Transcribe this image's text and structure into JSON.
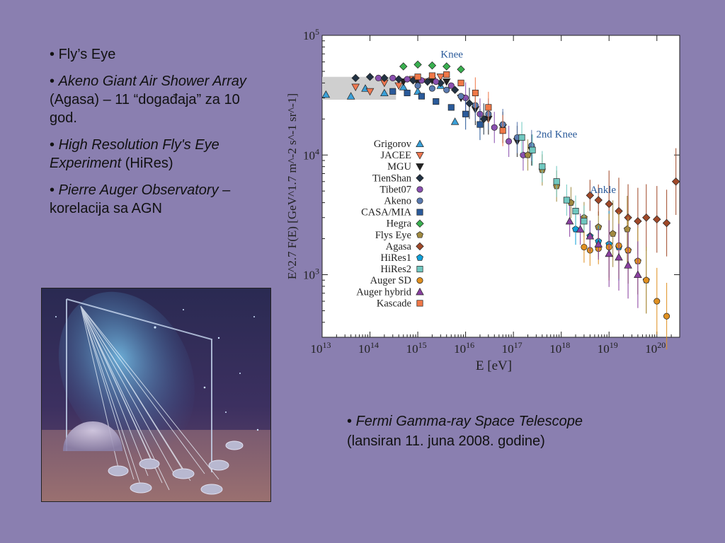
{
  "bullets": [
    {
      "italic": "",
      "plain": "Fly’s Eye"
    },
    {
      "italic": "Akeno Giant Air Shower Array",
      "plain": " (Agasa) – 11 “događaja” za 10 god."
    },
    {
      "italic": "High Resolution Fly's Eye Experiment",
      "plain": " (HiRes)"
    },
    {
      "italic": "Pierre Auger Observatory",
      "plain": " – korelacija sa AGN"
    }
  ],
  "fermi": {
    "italic": "Fermi Gamma-ray Space Telescope",
    "plain": "(lansiran 11. juna 2008. godine)"
  },
  "chart_data": {
    "type": "scatter",
    "title": "",
    "xlabel": "E [eV]",
    "ylabel": "E^2.7 F(E) [GeV^1.7 m^-2 s^-1 sr^-1]",
    "x_scale": "log",
    "y_scale": "log",
    "xlim": [
      10000000000000.0,
      3e+20
    ],
    "ylim": [
      300,
      100000.0
    ],
    "x_ticks": [
      "10^13",
      "10^14",
      "10^15",
      "10^16",
      "10^17",
      "10^18",
      "10^19",
      "10^20"
    ],
    "y_ticks": [
      "10^3",
      "10^4",
      "10^5"
    ],
    "grid": false,
    "legend": "left-center",
    "annotations": [
      {
        "text": "Knee",
        "x": 3000000000000000.0,
        "y": 65000
      },
      {
        "text": "2nd Knee",
        "x": 3e+17,
        "y": 14000
      },
      {
        "text": "Ankle",
        "x": 4e+18,
        "y": 4800
      }
    ],
    "series": [
      {
        "name": "Grigorov",
        "marker": "triangle-up",
        "color": "#3aa0d8",
        "x": [
          12000000000000.0,
          40000000000000.0,
          80000000000000.0,
          200000000000000.0,
          500000000000000.0,
          1000000000000000.0,
          3000000000000000.0,
          6000000000000000.0
        ],
        "y": [
          32000,
          31000,
          36000,
          33000,
          37000,
          34000,
          38000,
          19000
        ]
      },
      {
        "name": "JACEE",
        "marker": "triangle-down",
        "color": "#f07850",
        "x": [
          50000000000000.0,
          100000000000000.0,
          200000000000000.0,
          400000000000000.0,
          800000000000000.0,
          1600000000000000.0,
          3000000000000000.0
        ],
        "y": [
          37000,
          34000,
          40000,
          38000,
          43000,
          41000,
          45000
        ]
      },
      {
        "name": "MGU",
        "marker": "triangle-down",
        "color": "#222222",
        "x": [
          500000000000000.0,
          1000000000000000.0,
          2000000000000000.0,
          4000000000000000.0,
          8000000000000000.0,
          1.6e+16,
          3e+16,
          6e+16,
          1.2e+17,
          2.4e+17
        ],
        "y": [
          41000,
          40000,
          42000,
          41000,
          30000,
          24000,
          20000,
          17000,
          13000,
          11000
        ]
      },
      {
        "name": "TienShan",
        "marker": "diamond",
        "color": "#223344",
        "x": [
          50000000000000.0,
          100000000000000.0,
          200000000000000.0,
          400000000000000.0,
          800000000000000.0,
          1600000000000000.0,
          3000000000000000.0,
          6000000000000000.0,
          1.2e+16,
          2.4e+16
        ],
        "y": [
          44000,
          45000,
          44000,
          43000,
          42000,
          41000,
          40000,
          35000,
          27000,
          20000
        ]
      },
      {
        "name": "Tibet07",
        "marker": "circle",
        "color": "#8a50b0",
        "x": [
          150000000000000.0,
          300000000000000.0,
          600000000000000.0,
          1200000000000000.0,
          2400000000000000.0,
          5000000000000000.0,
          1e+16,
          2e+16,
          4e+16,
          8e+16,
          1.6e+17
        ],
        "y": [
          44000,
          44000,
          43000,
          42000,
          41000,
          38000,
          30000,
          22000,
          17000,
          13000,
          10000
        ]
      },
      {
        "name": "Akeno",
        "marker": "circle",
        "color": "#5a7ab0",
        "x": [
          1000000000000000.0,
          2000000000000000.0,
          4000000000000000.0,
          8000000000000000.0,
          1.6e+16,
          3e+16,
          6e+16,
          1.2e+17,
          2.4e+17
        ],
        "y": [
          38000,
          36000,
          35000,
          31000,
          26000,
          22000,
          18000,
          14000,
          12000
        ]
      },
      {
        "name": "CASA/MIA",
        "marker": "square",
        "color": "#2a5a9a",
        "x": [
          300000000000000.0,
          600000000000000.0,
          1200000000000000.0,
          2400000000000000.0,
          5000000000000000.0,
          1e+16,
          2e+16
        ],
        "y": [
          34000,
          33000,
          31000,
          28000,
          25000,
          22000,
          18000
        ]
      },
      {
        "name": "Hegra",
        "marker": "diamond",
        "color": "#3ab050",
        "x": [
          500000000000000.0,
          1000000000000000.0,
          2000000000000000.0,
          4000000000000000.0,
          8000000000000000.0
        ],
        "y": [
          55000,
          57000,
          56000,
          55000,
          52000
        ]
      },
      {
        "name": "Flys Eye",
        "marker": "pentagon",
        "color": "#a08a40",
        "x": [
          2e+17,
          4e+17,
          8e+17,
          1.6e+18,
          3e+18,
          6e+18,
          1.2e+19,
          2.4e+19
        ],
        "y": [
          10000,
          7500,
          5500,
          4000,
          3000,
          2500,
          2200,
          2400
        ]
      },
      {
        "name": "Agasa",
        "marker": "diamond",
        "color": "#a04828",
        "x": [
          4e+18,
          6e+18,
          1e+19,
          1.6e+19,
          2.5e+19,
          4e+19,
          6e+19,
          1e+20,
          1.6e+20,
          2.5e+20
        ],
        "y": [
          4600,
          4200,
          3900,
          3400,
          3000,
          2800,
          3000,
          2900,
          2700,
          6000
        ]
      },
      {
        "name": "HiRes1",
        "marker": "pentagon",
        "color": "#10a0d8",
        "x": [
          2e+18,
          4e+18,
          6e+18,
          1e+19,
          1.6e+19,
          2.5e+19,
          4e+19,
          6e+19
        ],
        "y": [
          2400,
          2100,
          1900,
          1800,
          1700,
          1600,
          1300,
          900
        ]
      },
      {
        "name": "HiRes2",
        "marker": "square",
        "color": "#70c8c0",
        "x": [
          1.5e+17,
          2.5e+17,
          4e+17,
          8e+17,
          1.3e+18,
          2e+18,
          3e+18
        ],
        "y": [
          14000,
          11000,
          8000,
          6000,
          4200,
          3400,
          2800
        ]
      },
      {
        "name": "Auger SD",
        "marker": "circle",
        "color": "#e09020",
        "x": [
          3e+18,
          4e+18,
          6e+18,
          1e+19,
          1.6e+19,
          2.5e+19,
          4e+19,
          6e+19,
          1e+20,
          1.6e+20
        ],
        "y": [
          1700,
          1600,
          1650,
          1700,
          1750,
          1600,
          1300,
          900,
          600,
          450
        ]
      },
      {
        "name": "Auger hybrid",
        "marker": "triangle-up",
        "color": "#8a40a0",
        "x": [
          1.5e+18,
          2.5e+18,
          4e+18,
          6e+18,
          1e+19,
          1.6e+19,
          2.5e+19,
          4e+19
        ],
        "y": [
          2800,
          2400,
          2100,
          1800,
          1500,
          1400,
          1200,
          1000
        ]
      },
      {
        "name": "Kascade",
        "marker": "square",
        "color": "#f07848",
        "x": [
          1000000000000000.0,
          2000000000000000.0,
          4000000000000000.0,
          8000000000000000.0,
          1.6e+16,
          3e+16,
          6e+16
        ],
        "y": [
          45000,
          46000,
          47000,
          40000,
          33000,
          25000,
          16000
        ]
      }
    ]
  }
}
